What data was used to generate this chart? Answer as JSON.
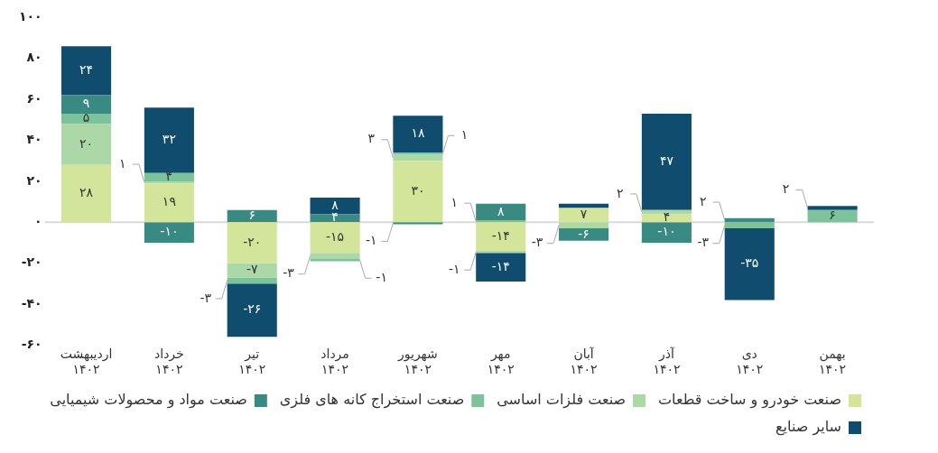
{
  "chart_data": {
    "type": "bar",
    "stacked": true,
    "categories": [
      "اردیبهشت ۱۴۰۲",
      "خرداد ۱۴۰۲",
      "تیر ۱۴۰۲",
      "مرداد ۱۴۰۲",
      "شهریور ۱۴۰۲",
      "مهر ۱۴۰۲",
      "آبان ۱۴۰۲",
      "آذر ۱۴۰۲",
      "دی ۱۴۰۲",
      "بهمن ۱۴۰۲"
    ],
    "ylim": [
      -60,
      100
    ],
    "yticks": [
      {
        "value": -60,
        "label": "-۶۰"
      },
      {
        "value": -40,
        "label": "-۴۰"
      },
      {
        "value": -20,
        "label": "-۲۰"
      },
      {
        "value": 0,
        "label": "۰"
      },
      {
        "value": 20,
        "label": "۲۰"
      },
      {
        "value": 40,
        "label": "۴۰"
      },
      {
        "value": 60,
        "label": "۶۰"
      },
      {
        "value": 80,
        "label": "۸۰"
      },
      {
        "value": 100,
        "label": "۱۰۰"
      }
    ],
    "grid": false,
    "legend": "bottom",
    "ref_lines": [
      {
        "axis": "y",
        "value": 0,
        "color": "#d9d9d9"
      }
    ],
    "series": [
      {
        "name": "صنعت خودرو و ساخت قطعات",
        "color": "#d2e59a",
        "values": [
          28,
          19,
          -20,
          -15,
          30,
          -14,
          7,
          4,
          null,
          null
        ],
        "value_labels": [
          "۲۸",
          "۱۹",
          "-۲۰",
          "-۱۵",
          "۳۰",
          "-۱۴",
          "۷",
          "۴",
          null,
          null
        ]
      },
      {
        "name": "صنعت فلزات اساسی",
        "color": "#acd8a8",
        "values": [
          20,
          1,
          -7,
          -3,
          3,
          -1,
          -3,
          2,
          null,
          null
        ],
        "value_labels": [
          "۲۰",
          "۱",
          "-۷",
          "-۳",
          "۳",
          "-۱",
          "-۳",
          "۲",
          null,
          null
        ]
      },
      {
        "name": "صنعت استخراج کانه های فلزی",
        "color": "#7cc29a",
        "values": [
          5,
          4,
          -3,
          -1,
          1,
          1,
          null,
          null,
          -3,
          6
        ],
        "value_labels": [
          "۵",
          "۴",
          "-۳",
          "-۱",
          "۱",
          "۱",
          null,
          null,
          "-۳",
          "۶"
        ]
      },
      {
        "name": "صنعت مواد و محصولات شیمیایی",
        "color": "#3a8a84",
        "values": [
          9,
          -10,
          6,
          4,
          -1,
          8,
          -6,
          -10,
          2,
          null
        ],
        "value_labels": [
          "۹",
          "-۱۰",
          "۶",
          "۴",
          "-۱",
          "۸",
          "-۶",
          "-۱۰",
          "۲",
          null
        ]
      },
      {
        "name": "سایر صنایع",
        "color": "#0f4c6e",
        "values": [
          24,
          32,
          -26,
          8,
          18,
          -14,
          2,
          47,
          -35,
          2
        ],
        "value_labels": [
          "۲۴",
          "۳۲",
          "-۲۶",
          "۸",
          "۱۸",
          "-۱۴",
          null,
          "۴۷",
          "-۳۵",
          "۲"
        ]
      }
    ]
  }
}
